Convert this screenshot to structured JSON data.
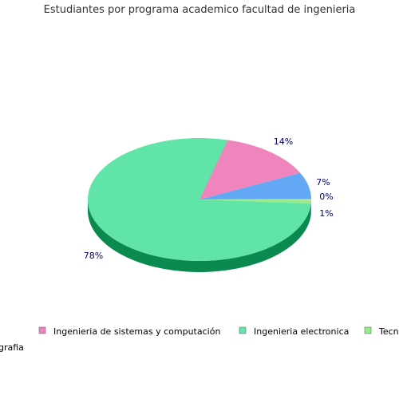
{
  "chart_data": {
    "type": "pie",
    "title": "Estudiantes por programa academico facultad de ingenieria",
    "slices": [
      {
        "label": "Ingenieria de sistemas y computación",
        "value": 14,
        "value_label": "14%",
        "color": "#f085be",
        "dark": "#b4608f"
      },
      {
        "label": "Ingenieria electronica",
        "value": 78,
        "value_label": "78%",
        "color": "#61e4a8",
        "dark": "#0a8a4f"
      },
      {
        "label": "Tecnología en topografía",
        "value": 1,
        "value_label": "1%",
        "color": "#94ec8c",
        "dark": "#55b04d"
      },
      {
        "label": "",
        "value": 0,
        "value_label": "0%",
        "color": "#f5d36a",
        "dark": "#b89a3d"
      },
      {
        "label": "",
        "value": 7,
        "value_label": "7%",
        "color": "#62a8f5",
        "dark": "#3a74b8"
      }
    ],
    "legend_placement": "bottom",
    "legend_visible_text": [
      "Ingenieria de sistemas y computación",
      "Ingenieria electronica",
      "Tecn",
      "grafia"
    ]
  }
}
